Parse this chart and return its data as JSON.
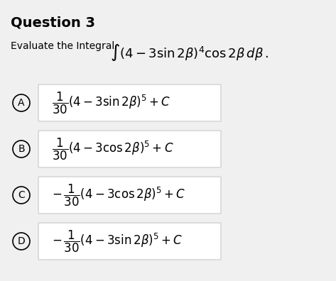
{
  "title": "Question 3",
  "question_text": "Evaluate the Integral",
  "integral_expr": "$\\int (4-3\\sin 2\\beta)^4 \\cos 2\\beta\\, d\\beta$",
  "background_color": "#f0f0f0",
  "panel_color": "#e8e8e8",
  "white_color": "#ffffff",
  "options": [
    {
      "label": "A",
      "expr": "$\\dfrac{1}{30}(4-3\\sin 2\\beta)^5 + C$",
      "negative": false
    },
    {
      "label": "B",
      "expr": "$\\dfrac{1}{30}(4-3\\cos 2\\beta)^5 + C$",
      "negative": false
    },
    {
      "label": "C",
      "expr": "$-\\dfrac{1}{30}(4-3\\cos 2\\beta)^5 + C$",
      "negative": true
    },
    {
      "label": "D",
      "expr": "$-\\dfrac{1}{30}(4-3\\sin 2\\beta)^5 + C$",
      "negative": true
    }
  ],
  "title_fontsize": 14,
  "question_fontsize": 10,
  "option_fontsize": 12
}
